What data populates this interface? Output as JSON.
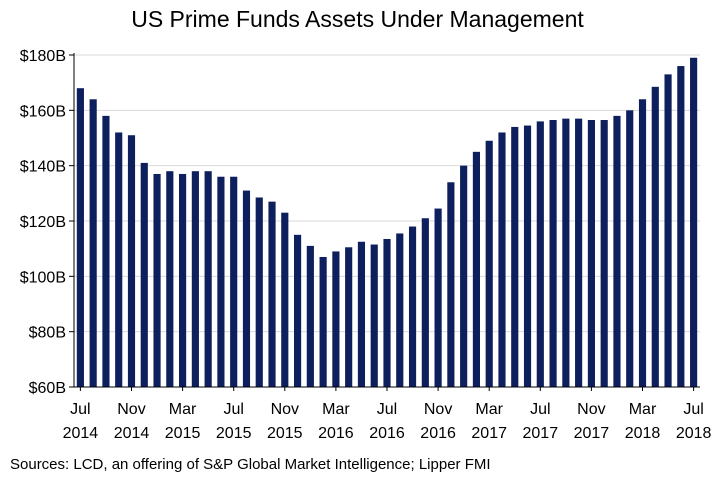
{
  "chart_data": {
    "type": "bar",
    "title": "US Prime Funds Assets Under Management",
    "source": "Sources: LCD, an offering of S&P Global Market Intelligence; Lipper FMI",
    "bar_color": "#0d1f5c",
    "ylim": [
      60,
      180
    ],
    "yticks": [
      {
        "value": 60,
        "label": "$60B"
      },
      {
        "value": 80,
        "label": "$80B"
      },
      {
        "value": 100,
        "label": "$100B"
      },
      {
        "value": 120,
        "label": "$120B"
      },
      {
        "value": 140,
        "label": "$140B"
      },
      {
        "value": 160,
        "label": "$160B"
      },
      {
        "value": 180,
        "label": "$180B"
      }
    ],
    "xticks": [
      {
        "index": 0,
        "month": "Jul",
        "year": "2014"
      },
      {
        "index": 4,
        "month": "Nov",
        "year": "2014"
      },
      {
        "index": 8,
        "month": "Mar",
        "year": "2015"
      },
      {
        "index": 12,
        "month": "Jul",
        "year": "2015"
      },
      {
        "index": 16,
        "month": "Nov",
        "year": "2015"
      },
      {
        "index": 20,
        "month": "Mar",
        "year": "2016"
      },
      {
        "index": 24,
        "month": "Jul",
        "year": "2016"
      },
      {
        "index": 28,
        "month": "Nov",
        "year": "2016"
      },
      {
        "index": 32,
        "month": "Mar",
        "year": "2017"
      },
      {
        "index": 36,
        "month": "Jul",
        "year": "2017"
      },
      {
        "index": 40,
        "month": "Nov",
        "year": "2017"
      },
      {
        "index": 44,
        "month": "Mar",
        "year": "2018"
      },
      {
        "index": 48,
        "month": "Jul",
        "year": "2018"
      }
    ],
    "categories": [
      "Jul 2014",
      "Aug 2014",
      "Sep 2014",
      "Oct 2014",
      "Nov 2014",
      "Dec 2014",
      "Jan 2015",
      "Feb 2015",
      "Mar 2015",
      "Apr 2015",
      "May 2015",
      "Jun 2015",
      "Jul 2015",
      "Aug 2015",
      "Sep 2015",
      "Oct 2015",
      "Nov 2015",
      "Dec 2015",
      "Jan 2016",
      "Feb 2016",
      "Mar 2016",
      "Apr 2016",
      "May 2016",
      "Jun 2016",
      "Jul 2016",
      "Aug 2016",
      "Sep 2016",
      "Oct 2016",
      "Nov 2016",
      "Dec 2016",
      "Jan 2017",
      "Feb 2017",
      "Mar 2017",
      "Apr 2017",
      "May 2017",
      "Jun 2017",
      "Jul 2017",
      "Aug 2017",
      "Sep 2017",
      "Oct 2017",
      "Nov 2017",
      "Dec 2017",
      "Jan 2018",
      "Feb 2018",
      "Mar 2018",
      "Apr 2018",
      "May 2018",
      "Jun 2018",
      "Jul 2018"
    ],
    "values": [
      168,
      164,
      158,
      152,
      151,
      141,
      137,
      138,
      137,
      138,
      138,
      136,
      136,
      131,
      128.5,
      127,
      123,
      115,
      111,
      107,
      109,
      110.5,
      112.5,
      111.5,
      113.5,
      115.5,
      118,
      121,
      124.5,
      134,
      140,
      145,
      149,
      152,
      154,
      154.5,
      156,
      156.5,
      157,
      157,
      156.5,
      156.5,
      158,
      160,
      164,
      168.5,
      173,
      176,
      179
    ],
    "grid": true
  }
}
